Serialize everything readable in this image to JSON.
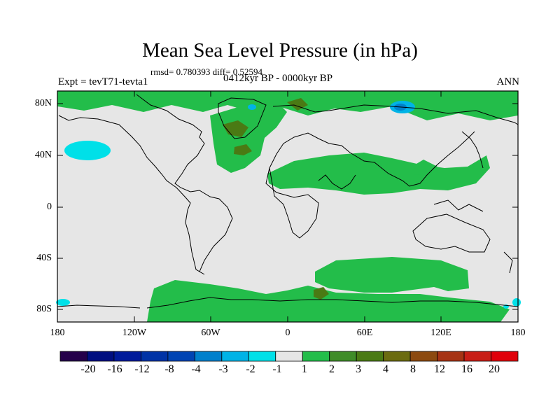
{
  "title": "Mean Sea Level Pressure (in hPa)",
  "stats": "rmsd= 0.780393 diff= 0.52594",
  "left_label": "Expt = tevT71-tevta1",
  "center_label": "0412kyr BP - 0000kyr BP",
  "right_label": "ANN",
  "map": {
    "lat_labels": [
      "80N",
      "40N",
      "0",
      "40S",
      "80S"
    ],
    "lon_labels": [
      "180",
      "120W",
      "60W",
      "0",
      "60E",
      "120E",
      "180"
    ],
    "background_color": "#e6e6e6",
    "coastline_color": "#000000"
  },
  "colorbar": {
    "labels": [
      "-20",
      "-16",
      "-12",
      "-8",
      "-4",
      "-3",
      "-2",
      "-1",
      "1",
      "2",
      "3",
      "4",
      "8",
      "12",
      "16",
      "20"
    ],
    "colors": [
      "#25004a",
      "#000e80",
      "#001a9a",
      "#0033a6",
      "#0044b3",
      "#0080cc",
      "#00b3e6",
      "#00e0e8",
      "#e6e6e6",
      "#23bd4a",
      "#3f8c28",
      "#4a7a14",
      "#6b6b10",
      "#8c4a10",
      "#a63314",
      "#c81e16",
      "#e0000a"
    ]
  }
}
